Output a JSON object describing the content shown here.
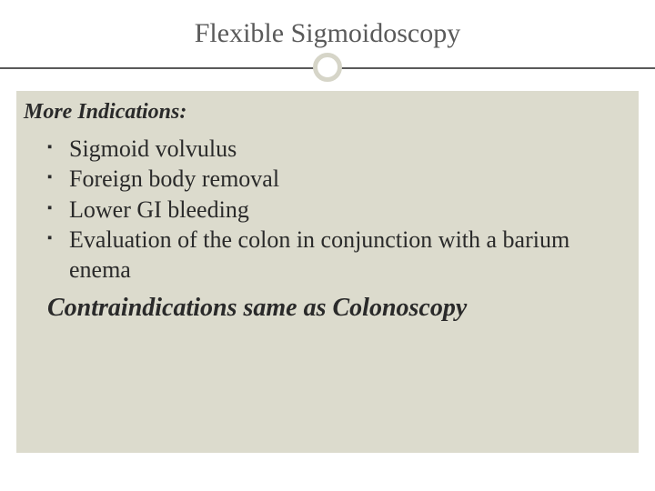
{
  "slide": {
    "title": "Flexible Sigmoidoscopy",
    "title_fontsize": 30,
    "title_color": "#5a5a5a",
    "divider_color": "#5a5a5a",
    "circle_border_color": "#d6d5c8",
    "content_background": "#dcdbcd",
    "subheading": "More Indications:",
    "subheading_fontsize": 24,
    "bullets": [
      "Sigmoid volvulus",
      "Foreign body removal",
      "Lower GI bleeding",
      "Evaluation of the colon in conjunction with a barium enema"
    ],
    "bullet_fontsize": 26,
    "bullet_color": "#2a2a2a",
    "closing": "Contraindications same as Colonoscopy",
    "closing_fontsize": 28,
    "background_color": "#ffffff"
  }
}
